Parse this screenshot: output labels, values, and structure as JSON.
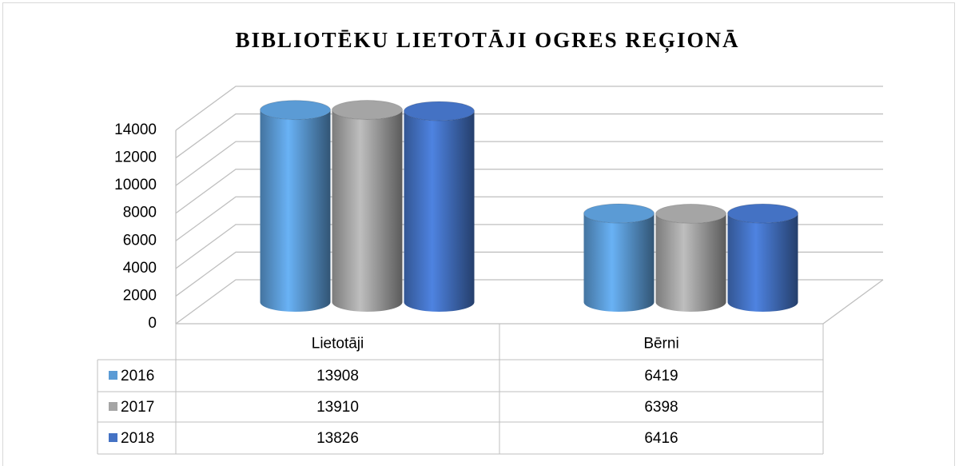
{
  "chart_data": {
    "type": "bar",
    "title": "BIBLIOTĒKU LIETOTĀJI OGRES REĢIONĀ",
    "categories": [
      "Lietotāji",
      "Bērni"
    ],
    "series": [
      {
        "name": "2016",
        "color": "#5b9bd5",
        "values": [
          13908,
          6419
        ]
      },
      {
        "name": "2017",
        "color": "#a5a5a5",
        "values": [
          13910,
          6398
        ]
      },
      {
        "name": "2018",
        "color": "#4472c4",
        "values": [
          13826,
          6416
        ]
      }
    ],
    "ylim": [
      0,
      14000
    ],
    "yticks": [
      0,
      2000,
      4000,
      6000,
      8000,
      10000,
      12000,
      14000
    ],
    "grid": true
  }
}
